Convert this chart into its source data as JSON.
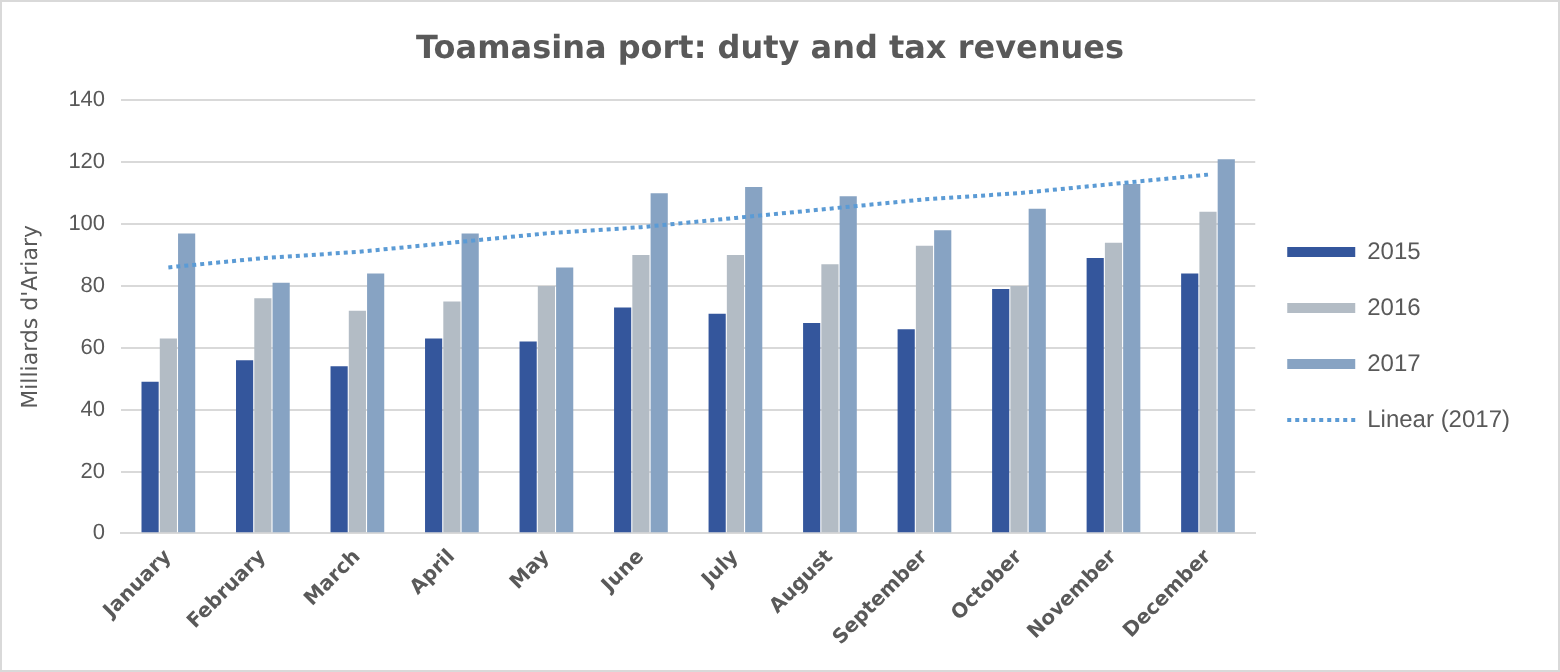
{
  "chart_data": {
    "type": "bar",
    "title": "Toamasina port: duty and tax revenues",
    "ylabel": "Milliards d'Ariary",
    "categories": [
      "January",
      "February",
      "March",
      "April",
      "May",
      "June",
      "July",
      "August",
      "September",
      "October",
      "November",
      "December"
    ],
    "series": [
      {
        "name": "2015",
        "color": "#34569c",
        "values": [
          49,
          56,
          54,
          63,
          62,
          73,
          71,
          68,
          66,
          79,
          89,
          84
        ]
      },
      {
        "name": "2016",
        "color": "#b3bcc5",
        "values": [
          63,
          76,
          72,
          75,
          80,
          90,
          90,
          87,
          93,
          80,
          94,
          104
        ]
      },
      {
        "name": "2017",
        "color": "#87a3c3",
        "values": [
          97,
          81,
          84,
          97,
          86,
          110,
          112,
          109,
          98,
          105,
          113,
          121
        ]
      },
      {
        "name": "Linear (2017)",
        "type": "line",
        "color": "#5b9bd5",
        "line_style": "dotted",
        "marker": "none",
        "values": [
          86,
          89,
          91,
          94,
          97,
          99,
          102,
          105,
          108,
          110,
          113,
          116
        ]
      }
    ],
    "ylim": [
      0,
      140
    ],
    "yticks": [
      0,
      20,
      40,
      60,
      80,
      100,
      120,
      140
    ],
    "grid": "y",
    "legend": "right"
  }
}
